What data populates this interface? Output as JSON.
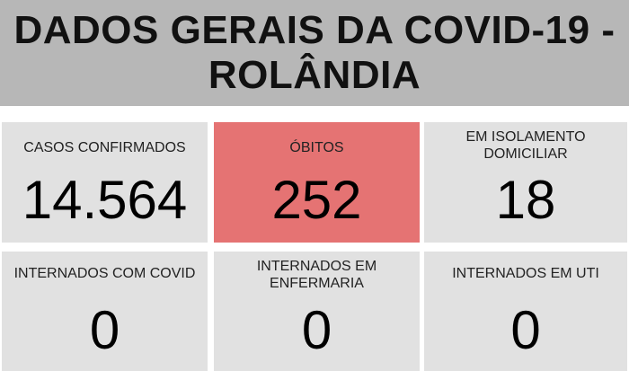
{
  "header": {
    "title": "DADOS GERAIS DA COVID-19 - ROLÂNDIA"
  },
  "colors": {
    "header_bg": "#b7b7b7",
    "card_bg": "#e1e1e1",
    "highlight_bg": "#e57373"
  },
  "cards": [
    {
      "label": "CASOS CONFIRMADOS",
      "value": "14.564"
    },
    {
      "label": "ÓBITOS",
      "value": "252"
    },
    {
      "label": "EM ISOLAMENTO DOMICILIAR",
      "value": "18"
    },
    {
      "label": "INTERNADOS COM COVID",
      "value": "0"
    },
    {
      "label": "INTERNADOS EM ENFERMARIA",
      "value": "0"
    },
    {
      "label": "INTERNADOS EM UTI",
      "value": "0"
    }
  ]
}
